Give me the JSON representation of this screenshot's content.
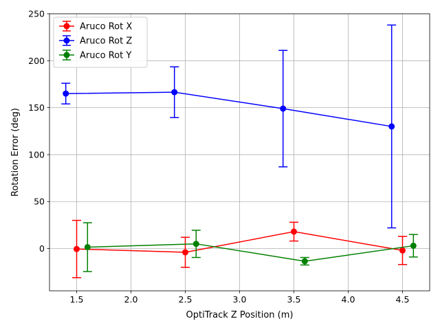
{
  "chart_data": {
    "type": "line",
    "title": "",
    "xlabel": "OptiTrack Z Position (m)",
    "ylabel": "Rotation Error (deg)",
    "xlim": [
      1.25,
      4.75
    ],
    "ylim": [
      -45,
      250
    ],
    "xticks": [
      1.5,
      2.0,
      2.5,
      3.0,
      3.5,
      4.0,
      4.5
    ],
    "xtick_labels": [
      "1.5",
      "2.0",
      "2.5",
      "3.0",
      "3.5",
      "4.0",
      "4.5"
    ],
    "yticks": [
      0,
      50,
      100,
      150,
      200,
      250
    ],
    "ytick_labels": [
      "0",
      "50",
      "100",
      "150",
      "200",
      "250"
    ],
    "grid": true,
    "legend_position": "top-left",
    "series": [
      {
        "name": "Aruco Rot X",
        "color": "#ff0000",
        "x": [
          1.5,
          2.5,
          3.5,
          4.5
        ],
        "y": [
          -0.5,
          -4,
          18,
          -2
        ],
        "yerr": [
          30.5,
          16,
          10,
          15
        ]
      },
      {
        "name": "Aruco Rot Z",
        "color": "#0000ff",
        "x": [
          1.4,
          2.4,
          3.4,
          4.4
        ],
        "y": [
          165,
          166.5,
          149,
          130
        ],
        "yerr": [
          11,
          27,
          62,
          108
        ]
      },
      {
        "name": "Aruco Rot Y",
        "color": "#008000",
        "x": [
          1.6,
          2.6,
          3.6,
          4.6
        ],
        "y": [
          1.5,
          5,
          -13.5,
          3
        ],
        "yerr": [
          26,
          14.5,
          4,
          12
        ]
      }
    ]
  }
}
